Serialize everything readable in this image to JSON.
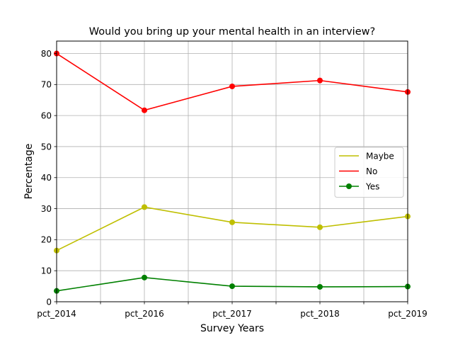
{
  "chart_data": {
    "type": "line",
    "title": "Would you bring up your mental health in an interview?",
    "xlabel": "Survey Years",
    "ylabel": "Percentage",
    "categories": [
      "pct_2014",
      "pct_2016",
      "pct_2017",
      "pct_2018",
      "pct_2019"
    ],
    "ylim": [
      0,
      84
    ],
    "yticks": [
      0,
      10,
      20,
      30,
      40,
      50,
      60,
      70,
      80
    ],
    "grid": true,
    "legend_position": "center-right",
    "series": [
      {
        "name": "Maybe",
        "color": "#bfbf00",
        "values": [
          16.5,
          30.5,
          25.6,
          24.0,
          27.5
        ]
      },
      {
        "name": "No",
        "color": "#ff0000",
        "values": [
          80.0,
          61.7,
          69.4,
          71.3,
          67.6
        ]
      },
      {
        "name": "Yes",
        "color": "#008000",
        "values": [
          3.5,
          7.8,
          5.0,
          4.8,
          4.9
        ]
      }
    ]
  }
}
